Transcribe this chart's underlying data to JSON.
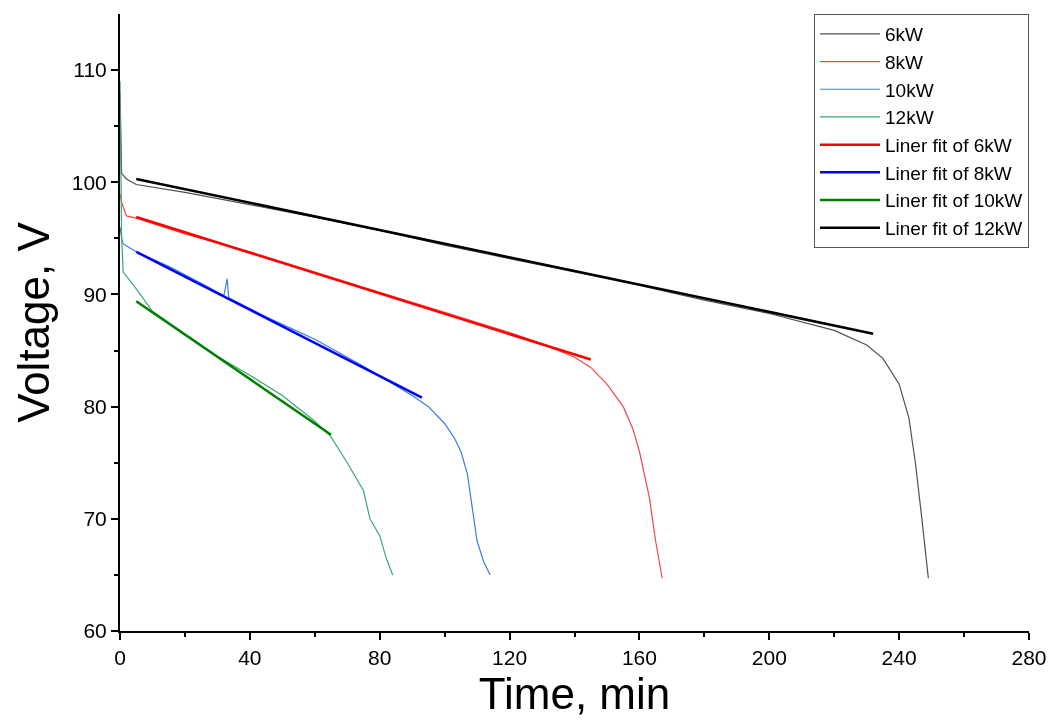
{
  "chart_data": {
    "type": "line",
    "xlabel": "Time, min",
    "ylabel": "Voltage, V",
    "xlim": [
      0,
      280
    ],
    "xticks": [
      0,
      40,
      80,
      120,
      160,
      200,
      240,
      280
    ],
    "ylim": [
      60,
      115
    ],
    "yticks": [
      60,
      70,
      80,
      90,
      100,
      110
    ],
    "legend": "top right",
    "marker": "none",
    "series": [
      {
        "name": "6kW",
        "color": "#505050",
        "x": [
          0,
          0.5,
          2,
          5,
          20,
          40,
          60,
          80,
          100,
          120,
          140,
          160,
          180,
          200,
          220,
          230,
          235,
          240,
          243,
          245,
          247,
          249
        ],
        "values": [
          108,
          100.8,
          100.3,
          99.8,
          99.1,
          98,
          96.9,
          95.7,
          94.4,
          93.2,
          92,
          90.8,
          89.5,
          88.3,
          86.8,
          85.5,
          84.3,
          82,
          79,
          75,
          70,
          64.7
        ]
      },
      {
        "name": "8kW",
        "color": "#f04848",
        "x": [
          0,
          0.5,
          2,
          5,
          20,
          40,
          60,
          80,
          100,
          120,
          130,
          140,
          145,
          150,
          155,
          158,
          160,
          163,
          165,
          167
        ],
        "values": [
          99,
          98.2,
          97,
          96.8,
          95.4,
          93.8,
          92,
          90.2,
          88.4,
          86.6,
          85.6,
          84.4,
          83.5,
          82,
          80,
          78,
          76,
          72,
          68,
          64.7
        ]
      },
      {
        "name": "10kW",
        "color": "#3a7fd8",
        "x": [
          0,
          0.5,
          1,
          5,
          15,
          25,
          32,
          33,
          33.5,
          45,
          60,
          75,
          90,
          95,
          100,
          103,
          105,
          107,
          108,
          110,
          112,
          114
        ],
        "values": [
          96,
          95,
          94.5,
          93.8,
          92.5,
          91,
          89.9,
          91.4,
          89.7,
          88,
          86,
          83.6,
          81,
          80,
          78.5,
          77.2,
          76,
          74,
          72,
          68,
          66.2,
          65
        ]
      },
      {
        "name": "12kW",
        "color": "#3aa870",
        "x": [
          0,
          0.5,
          1,
          5,
          10,
          20,
          30,
          40,
          50,
          60,
          65,
          70,
          73,
          75,
          77,
          80,
          82,
          84
        ],
        "values": [
          109,
          95,
          92,
          90.5,
          88.5,
          86.5,
          84.5,
          82.8,
          81,
          78.7,
          77.3,
          75,
          73.5,
          72.5,
          70,
          68.5,
          66.5,
          65
        ]
      },
      {
        "name": "Liner fit of 6kW",
        "color": "#ff0000",
        "x": [
          5,
          145
        ],
        "values": [
          96.9,
          84.2
        ]
      },
      {
        "name": "Liner fit of 8kW",
        "color": "#0000ff",
        "x": [
          5,
          93
        ],
        "values": [
          93.8,
          80.8
        ]
      },
      {
        "name": "Liner fit of 10kW",
        "color": "#008000",
        "x": [
          5,
          65
        ],
        "values": [
          89.4,
          77.5
        ]
      },
      {
        "name": "Liner fit of 12kW",
        "color": "#000000",
        "x": [
          5,
          232
        ],
        "values": [
          100.3,
          86.5
        ]
      }
    ]
  }
}
